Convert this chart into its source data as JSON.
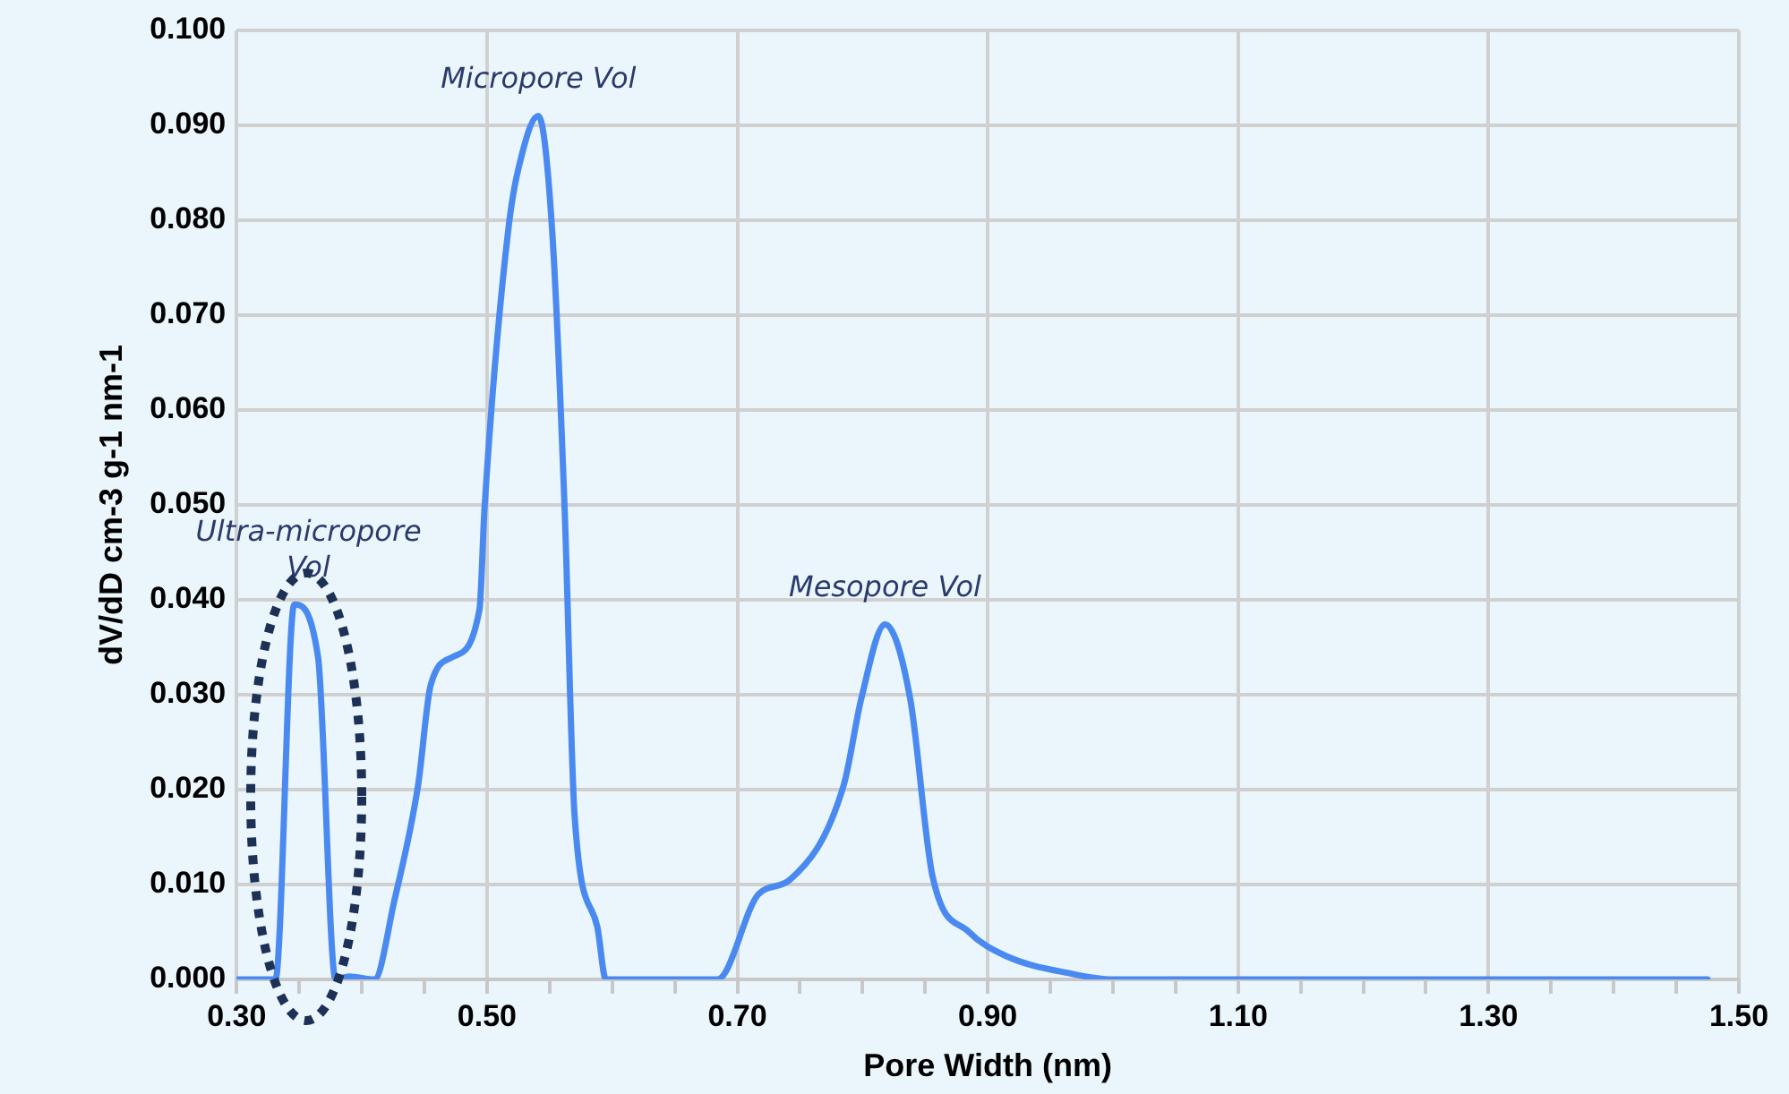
{
  "chart_data": {
    "type": "line",
    "xlabel": "Pore Width (nm)",
    "ylabel": "dV/dD cm-3 g-1 nm-1",
    "x": [
      0.3,
      0.329,
      0.331,
      0.346,
      0.365,
      0.379,
      0.39,
      0.41,
      0.426,
      0.445,
      0.455,
      0.473,
      0.494,
      0.498,
      0.517,
      0.528,
      0.541,
      0.552,
      0.562,
      0.57,
      0.588,
      0.595,
      0.684,
      0.717,
      0.742,
      0.785,
      0.799,
      0.818,
      0.838,
      0.856,
      0.885,
      0.914,
      0.967,
      1.0,
      1.475
    ],
    "series": [
      {
        "color": "#4a8af0",
        "values": [
          0,
          0,
          0,
          0.0395,
          0.034,
          0,
          0.0003,
          0,
          0.0083,
          0.0205,
          0.031,
          0.034,
          0.039,
          0.0496,
          0.079,
          0.087,
          0.091,
          0.079,
          0.0496,
          0.0172,
          0.0056,
          0,
          0,
          0.009,
          0.0105,
          0.0205,
          0.0296,
          0.0374,
          0.0296,
          0.0108,
          0.005,
          0.0025,
          0.0006,
          0,
          0
        ]
      }
    ],
    "xlim": [
      0.3,
      1.5
    ],
    "xticks": [
      {
        "value": 0.3,
        "label": "0.30"
      },
      {
        "value": 0.35,
        "label": null
      },
      {
        "value": 0.4,
        "label": null
      },
      {
        "value": 0.45,
        "label": null
      },
      {
        "value": 0.5,
        "label": "0.50"
      },
      {
        "value": 0.55,
        "label": null
      },
      {
        "value": 0.6,
        "label": null
      },
      {
        "value": 0.65,
        "label": null
      },
      {
        "value": 0.7,
        "label": "0.70"
      },
      {
        "value": 0.75,
        "label": null
      },
      {
        "value": 0.8,
        "label": null
      },
      {
        "value": 0.85,
        "label": null
      },
      {
        "value": 0.9,
        "label": "0.90"
      },
      {
        "value": 0.95,
        "label": null
      },
      {
        "value": 1.0,
        "label": null
      },
      {
        "value": 1.05,
        "label": null
      },
      {
        "value": 1.1,
        "label": "1.10"
      },
      {
        "value": 1.15,
        "label": null
      },
      {
        "value": 1.2,
        "label": null
      },
      {
        "value": 1.25,
        "label": null
      },
      {
        "value": 1.3,
        "label": "1.30"
      },
      {
        "value": 1.35,
        "label": null
      },
      {
        "value": 1.4,
        "label": null
      },
      {
        "value": 1.45,
        "label": null
      },
      {
        "value": 1.5,
        "label": "1.50"
      }
    ],
    "ylim": [
      0,
      0.1
    ],
    "yticks": [
      {
        "value": 0,
        "label": "0.000"
      },
      {
        "value": 0.01,
        "label": "0.010"
      },
      {
        "value": 0.02,
        "label": "0.020"
      },
      {
        "value": 0.03,
        "label": "0.030"
      },
      {
        "value": 0.04,
        "label": "0.040"
      },
      {
        "value": 0.05,
        "label": "0.050"
      },
      {
        "value": 0.06,
        "label": "0.060"
      },
      {
        "value": 0.07,
        "label": "0.070"
      },
      {
        "value": 0.08,
        "label": "0.080"
      },
      {
        "value": 0.09,
        "label": "0.090"
      },
      {
        "value": 0.1,
        "label": "0.100"
      }
    ],
    "grid": true,
    "legend": false,
    "marker": "none",
    "line_style": "solid",
    "annotations": [
      {
        "text": "Ultra-micropore Vol",
        "x": 0.346,
        "y": 0.0395
      },
      {
        "text": "Micropore Vol",
        "x": 0.541,
        "y": 0.091
      },
      {
        "text": "Mesopore Vol",
        "x": 0.818,
        "y": 0.0374
      }
    ]
  }
}
